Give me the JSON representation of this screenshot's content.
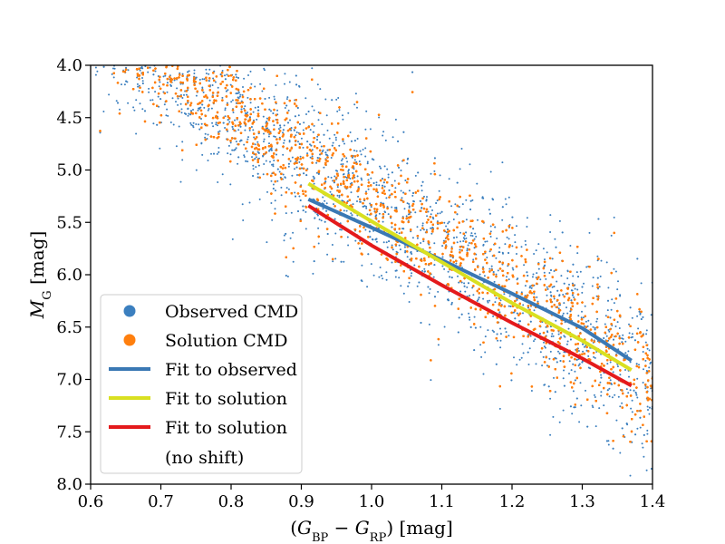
{
  "chart_data": {
    "type": "scatter",
    "title": "",
    "xlabel": "(G_BP − G_RP) [mag]",
    "ylabel": "M_G [mag]",
    "xlabel_parts": {
      "open": "(",
      "a": "G",
      "a_sub": "BP",
      "minus": " − ",
      "b": "G",
      "b_sub": "RP",
      "close": ") [mag]"
    },
    "ylabel_parts": {
      "main": "M",
      "sub": "G",
      "unit": " [mag]"
    },
    "xlim": [
      0.6,
      1.4
    ],
    "ylim": [
      8.0,
      4.0
    ],
    "y_inverted": true,
    "grid": false,
    "xticks": [
      "0.6",
      "0.7",
      "0.8",
      "0.9",
      "1.0",
      "1.1",
      "1.2",
      "1.3",
      "1.4"
    ],
    "yticks": [
      "4.0",
      "4.5",
      "5.0",
      "5.5",
      "6.0",
      "6.5",
      "7.0",
      "7.5",
      "8.0"
    ],
    "legend_position": "lower-left",
    "colors": {
      "observed": "#3b7fbf",
      "solution": "#ff7f0e",
      "fit_observed": "#3a78b4",
      "fit_solution": "#d9e021",
      "fit_noshift": "#e41a1c"
    },
    "scatter_series": [
      {
        "name": "Observed CMD",
        "color": "#3b7fbf",
        "approx_count": 2500,
        "main_sequence_relation": "M_G ≈ 4.3·(BP−RP) + 1.0"
      },
      {
        "name": "Solution CMD",
        "color": "#ff7f0e",
        "approx_count": 9000,
        "main_sequence_relation": "M_G ≈ 4.3·(BP−RP) + 1.0"
      }
    ],
    "lines": [
      {
        "name": "Fit to observed",
        "color": "#3a78b4",
        "x": [
          0.91,
          1.0,
          1.1,
          1.2,
          1.3,
          1.37
        ],
        "y": [
          5.28,
          5.55,
          5.86,
          6.18,
          6.51,
          6.82
        ]
      },
      {
        "name": "Fit to solution",
        "color": "#d9e021",
        "x": [
          0.91,
          1.0,
          1.1,
          1.2,
          1.3,
          1.37
        ],
        "y": [
          5.13,
          5.49,
          5.88,
          6.27,
          6.63,
          6.91
        ]
      },
      {
        "name": "Fit to solution (no shift)",
        "color": "#e41a1c",
        "x": [
          0.91,
          1.0,
          1.1,
          1.2,
          1.3,
          1.37
        ],
        "y": [
          5.34,
          5.72,
          6.1,
          6.46,
          6.8,
          7.06
        ]
      }
    ],
    "legend": [
      {
        "label": "Observed CMD",
        "kind": "marker",
        "color": "#3b7fbf"
      },
      {
        "label": "Solution CMD",
        "kind": "marker",
        "color": "#ff7f0e"
      },
      {
        "label": "Fit to observed",
        "kind": "line",
        "color": "#3a78b4"
      },
      {
        "label": "Fit to solution",
        "kind": "line",
        "color": "#d9e021"
      },
      {
        "label": "Fit to solution",
        "kind": "line",
        "color": "#e41a1c"
      },
      {
        "label": "(no shift)",
        "kind": "none",
        "color": ""
      }
    ]
  }
}
